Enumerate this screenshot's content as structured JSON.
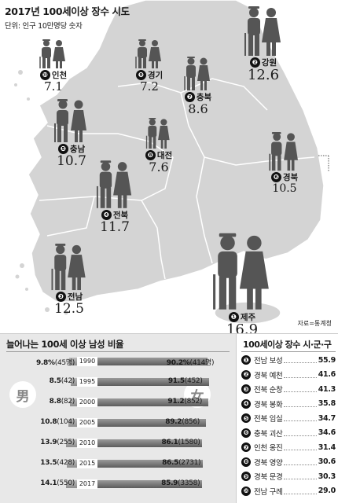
{
  "header": {
    "title": "2017년 100세이상 장수 시도",
    "subtitle": "단위: 인구 10만명당 숫자"
  },
  "source": "자료=통계청",
  "regions": [
    {
      "rank": "❿",
      "name": "인천",
      "value": "7.1"
    },
    {
      "rank": "❾",
      "name": "경기",
      "value": "7.2"
    },
    {
      "rank": "❷",
      "name": "강원",
      "value": "12.6"
    },
    {
      "rank": "❼",
      "name": "충북",
      "value": "8.6"
    },
    {
      "rank": "❺",
      "name": "충남",
      "value": "10.7"
    },
    {
      "rank": "❽",
      "name": "대전",
      "value": "7.6"
    },
    {
      "rank": "❻",
      "name": "경북",
      "value": "10.5"
    },
    {
      "rank": "❹",
      "name": "전북",
      "value": "11.7"
    },
    {
      "rank": "❸",
      "name": "전남",
      "value": "12.5"
    },
    {
      "rank": "❶",
      "name": "제주",
      "value": "16.9"
    }
  ],
  "ratio_chart": {
    "title": "늘어나는 100세 이상 남성 비율",
    "male_symbol": "男",
    "female_symbol": "女",
    "rows": [
      {
        "year": "1990",
        "male_pct": "9.8%",
        "male_count": "(45명)",
        "female_pct": "90.2%",
        "female_count": "(414명)"
      },
      {
        "year": "1995",
        "male_pct": "8.5",
        "male_count": "(42)",
        "female_pct": "91.5",
        "female_count": "(452)"
      },
      {
        "year": "2000",
        "male_pct": "8.8",
        "male_count": "(82)",
        "female_pct": "91.2",
        "female_count": "(852)"
      },
      {
        "year": "2005",
        "male_pct": "10.8",
        "male_count": "(104)",
        "female_pct": "89.2",
        "female_count": "(856)"
      },
      {
        "year": "2010",
        "male_pct": "13.9",
        "male_count": "(255)",
        "female_pct": "86.1",
        "female_count": "(1580)"
      },
      {
        "year": "2015",
        "male_pct": "13.5",
        "male_count": "(428)",
        "female_pct": "86.5",
        "female_count": "(2731)"
      },
      {
        "year": "2017",
        "male_pct": "14.1",
        "male_count": "(550)",
        "female_pct": "85.9",
        "female_count": "(3358)"
      }
    ]
  },
  "chart_data": {
    "type": "bar",
    "title": "늘어나는 100세 이상 남성 비율",
    "categories": [
      "1990",
      "1995",
      "2000",
      "2005",
      "2010",
      "2015",
      "2017"
    ],
    "series": [
      {
        "name": "男",
        "values": [
          9.8,
          8.5,
          8.8,
          10.8,
          13.9,
          13.5,
          14.1
        ],
        "counts": [
          45,
          42,
          82,
          104,
          255,
          428,
          550
        ]
      },
      {
        "name": "女",
        "values": [
          90.2,
          91.5,
          91.2,
          89.2,
          86.1,
          86.5,
          85.9
        ],
        "counts": [
          414,
          452,
          852,
          856,
          1580,
          2731,
          3358
        ]
      }
    ]
  },
  "top10": {
    "title": "100세이상 장수 시·군·구",
    "items": [
      {
        "rank": "❶",
        "name": "전남 보성",
        "value": "55.9"
      },
      {
        "rank": "❷",
        "name": "경북 예천",
        "value": "41.6"
      },
      {
        "rank": "❸",
        "name": "전북 순창",
        "value": "41.3"
      },
      {
        "rank": "❹",
        "name": "경북 봉화",
        "value": "35.8"
      },
      {
        "rank": "❺",
        "name": "전북 임실",
        "value": "34.7"
      },
      {
        "rank": "❻",
        "name": "충북 괴산",
        "value": "34.6"
      },
      {
        "rank": "❼",
        "name": "인천 옹진",
        "value": "31.4"
      },
      {
        "rank": "❽",
        "name": "경북 영양",
        "value": "30.6"
      },
      {
        "rank": "❾",
        "name": "경북 문경",
        "value": "30.3"
      },
      {
        "rank": "❿",
        "name": "전남 구례",
        "value": "29.0"
      }
    ]
  }
}
